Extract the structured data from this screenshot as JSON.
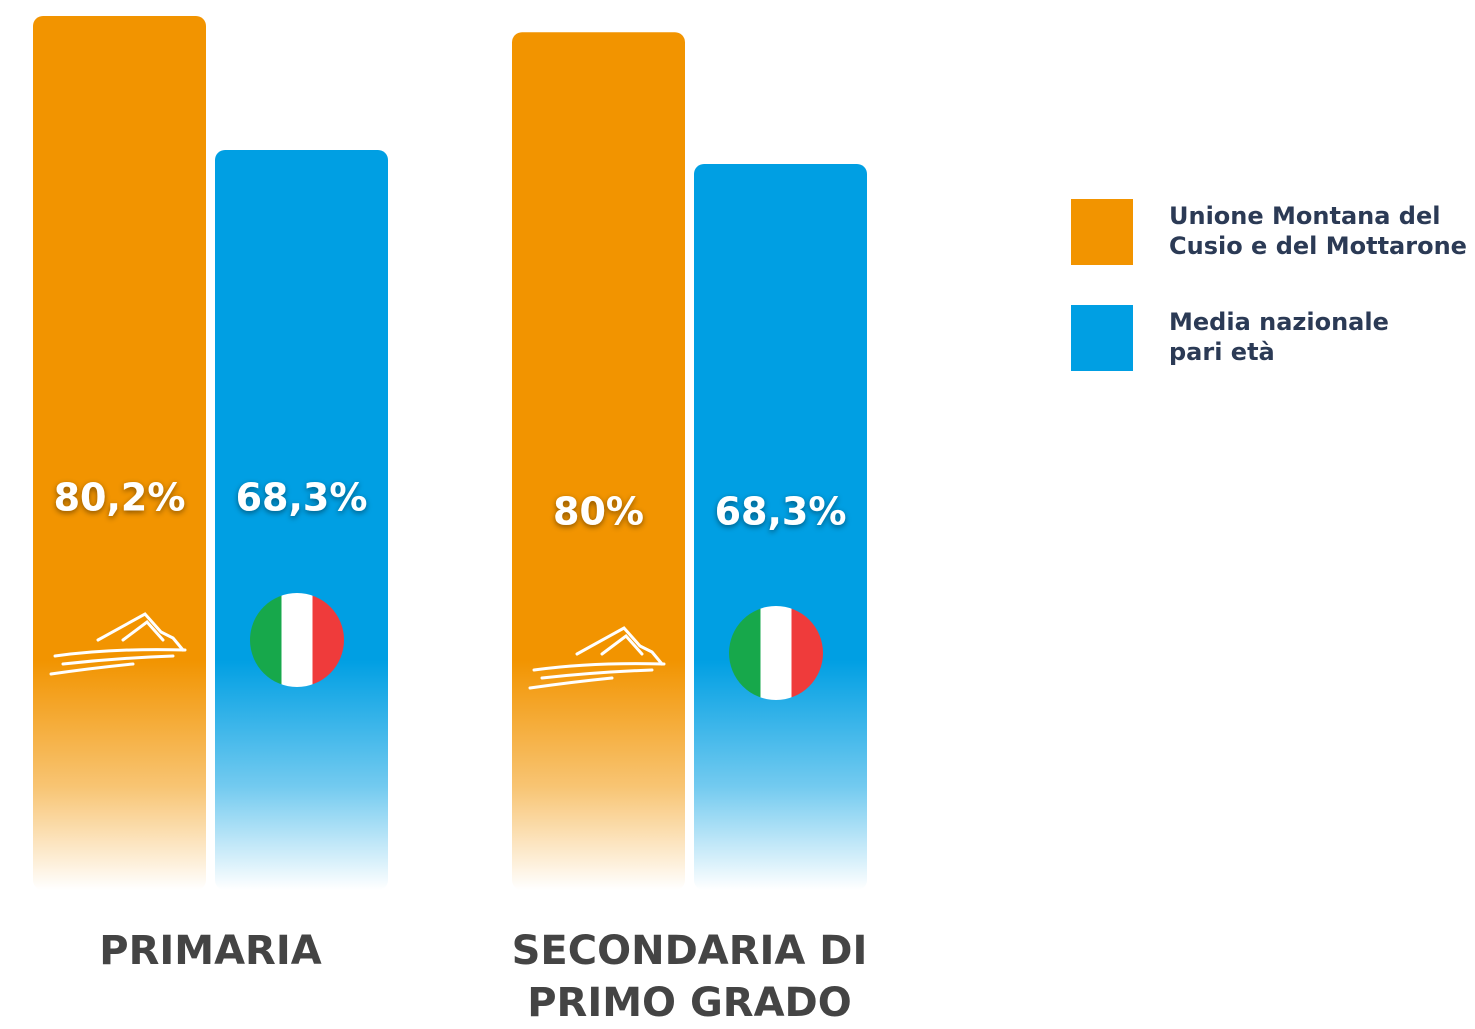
{
  "chart_data": {
    "type": "bar",
    "categories": [
      "PRIMARIA",
      "SECONDARIA DI PRIMO GRADO"
    ],
    "series": [
      {
        "name": "Unione Montana del Cusio e del Mottarone",
        "color": "#f29400",
        "values": [
          80.2,
          80
        ],
        "value_labels": [
          "80,2%",
          "80%"
        ]
      },
      {
        "name": "Media nazionale pari età",
        "color": "#009fe3",
        "values": [
          68.3,
          68.3
        ],
        "value_labels": [
          "68,3%",
          "68,3%"
        ]
      }
    ],
    "legend": "right"
  }
}
